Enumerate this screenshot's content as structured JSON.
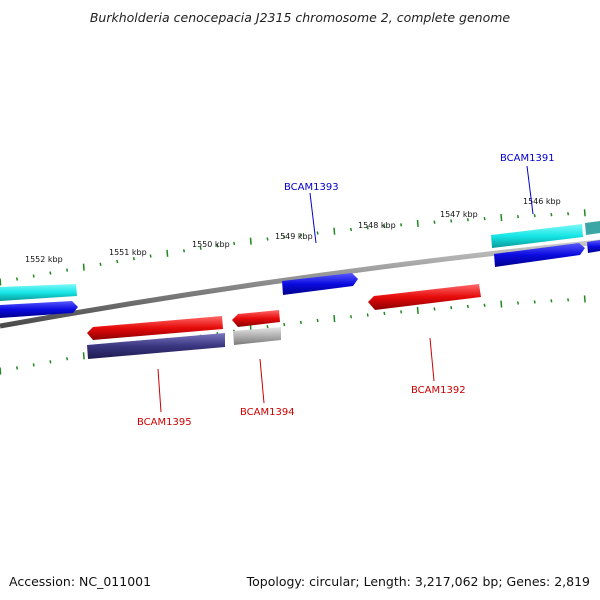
{
  "title": "Burkholderia cenocepacia J2315 chromosome 2, complete genome",
  "accession_label": "Accession: NC_011001",
  "summary_label": "Topology: circular; Length: 3,217,062 bp; Genes: 2,819",
  "colors": {
    "backbone": "#8a8a8a",
    "tick": "#1e8a1e",
    "forward_label": "#0000cc",
    "reverse_label": "#cc0000",
    "blue_gene": "#0a0ae0",
    "cyan_gene": "#16e6e6",
    "red_gene": "#e60a0a",
    "navy_gene": "#3a3680",
    "grey_gene": "#b0b0b0"
  },
  "scale_labels": [
    "1552 kbp",
    "1551 kbp",
    "1550 kbp",
    "1549 kbp",
    "1548 kbp",
    "1547 kbp",
    "1546 kbp"
  ],
  "gene_labels": {
    "bcam1391": "BCAM1391",
    "bcam1392": "BCAM1392",
    "bcam1393": "BCAM1393",
    "bcam1394": "BCAM1394",
    "bcam1395": "BCAM1395"
  }
}
